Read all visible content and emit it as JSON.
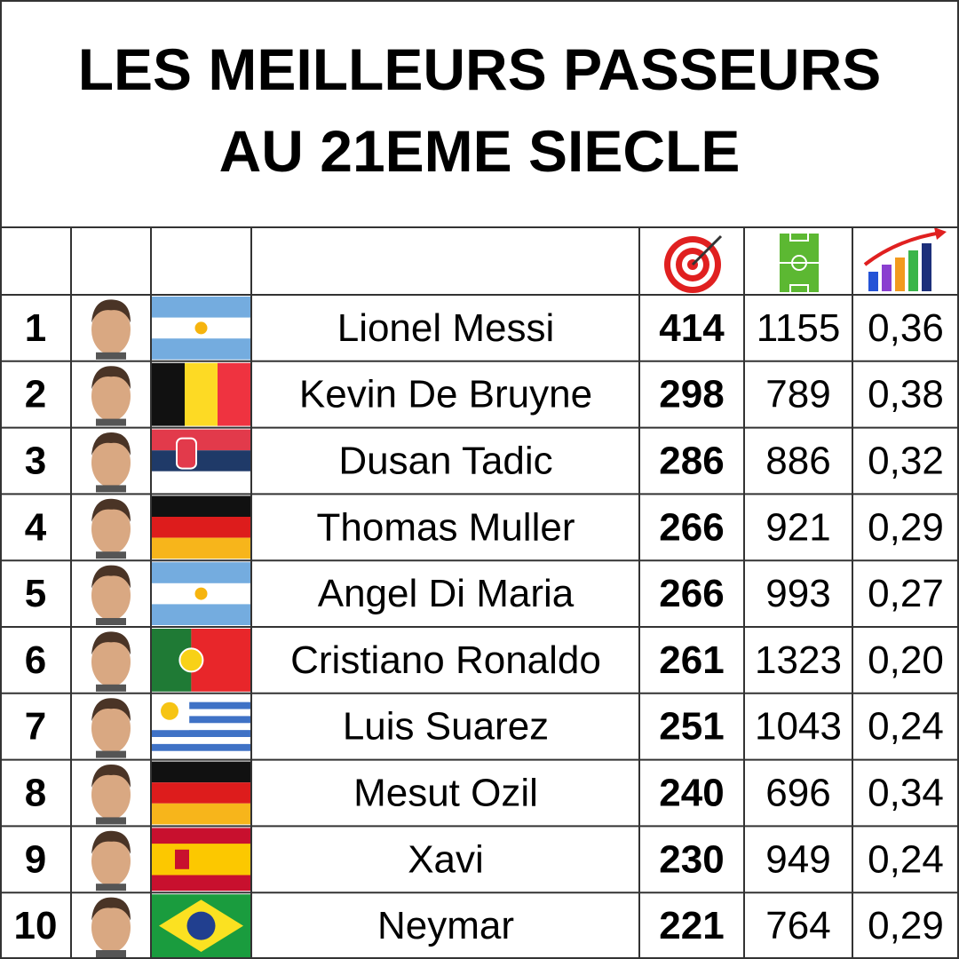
{
  "header": {
    "title_lines": [
      "LES MEILLEURS PASSEURS",
      "AU 21EME SIECLE"
    ]
  },
  "table": {
    "rows": [
      [
        1,
        "Lionel Messi",
        414,
        1155,
        "0,36"
      ],
      [
        2,
        "Kevin De Bruyne",
        298,
        789,
        "0,38"
      ],
      [
        3,
        "Dusan Tadic",
        286,
        886,
        "0,32"
      ],
      [
        4,
        "Thomas Muller",
        266,
        921,
        "0,29"
      ],
      [
        5,
        "Angel Di Maria",
        266,
        993,
        "0,27"
      ],
      [
        6,
        "Cristiano Ronaldo",
        261,
        1323,
        "0,20"
      ],
      [
        7,
        "Luis Suarez",
        251,
        1043,
        "0,24"
      ],
      [
        8,
        "Mesut Ozil",
        240,
        696,
        "0,34"
      ],
      [
        9,
        "Xavi",
        230,
        949,
        "0,24"
      ],
      [
        10,
        "Neymar",
        221,
        764,
        "0,29"
      ]
    ]
  }
}
